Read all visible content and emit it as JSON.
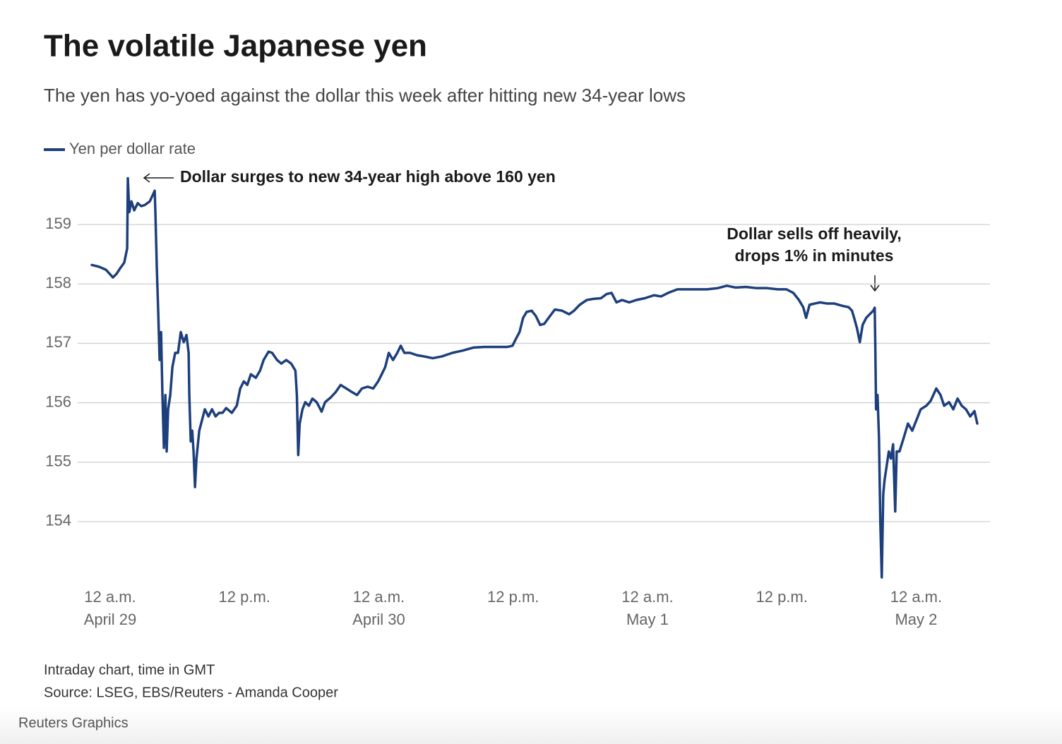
{
  "chart_data": {
    "type": "line",
    "title": "The volatile Japanese yen",
    "subtitle": "The yen has yo-yoed against the dollar this week after hitting new 34-year lows",
    "annotations": [
      {
        "lines": [
          "Dollar surges to new 34-year high above 160 yen"
        ]
      },
      {
        "lines": [
          "Dollar sells off heavily,",
          "drops 1% in minutes"
        ]
      }
    ],
    "notes": [
      "Intraday chart, time in GMT",
      "Source: LSEG, EBS/Reuters - Amanda Cooper"
    ],
    "credit": "Reuters Graphics",
    "grid": true,
    "legend": "top-left",
    "xlim": [
      -1.64,
      77.46
    ],
    "xticks": [
      {
        "value": 0,
        "label": [
          "12 a.m.",
          "April 29"
        ]
      },
      {
        "value": 12,
        "label": [
          "12 p.m."
        ]
      },
      {
        "value": 24,
        "label": [
          "12 a.m.",
          "April 30"
        ]
      },
      {
        "value": 36,
        "label": [
          "12 p.m."
        ]
      },
      {
        "value": 48,
        "label": [
          "12 a.m.",
          "May 1"
        ]
      },
      {
        "value": 60,
        "label": [
          "12 p.m."
        ]
      },
      {
        "value": 72,
        "label": [
          "12 a.m.",
          "May 2"
        ]
      }
    ],
    "ylim": [
      153,
      160
    ],
    "yticks": [
      154,
      155,
      156,
      157,
      158,
      159
    ],
    "x": [
      -1.64,
      -1.0,
      -0.38,
      0.25,
      0.57,
      0.88,
      1.26,
      1.52,
      1.58,
      1.71,
      1.9,
      2.15,
      2.46,
      2.78,
      3.1,
      3.54,
      3.98,
      4.04,
      4.17,
      4.29,
      4.42,
      4.55,
      4.67,
      4.8,
      4.93,
      5.05,
      5.18,
      5.37,
      5.56,
      5.81,
      6.06,
      6.31,
      6.57,
      6.82,
      7.01,
      7.07,
      7.2,
      7.33,
      7.45,
      7.58,
      7.71,
      7.96,
      8.21,
      8.46,
      8.78,
      9.1,
      9.42,
      9.73,
      10.04,
      10.36,
      10.87,
      11.31,
      11.62,
      11.94,
      12.25,
      12.57,
      13.01,
      13.39,
      13.71,
      14.15,
      14.47,
      14.91,
      15.29,
      15.73,
      16.17,
      16.55,
      16.68,
      16.8,
      16.93,
      17.18,
      17.43,
      17.75,
      18.07,
      18.45,
      18.89,
      19.2,
      19.71,
      20.15,
      20.59,
      21.1,
      21.6,
      22.05,
      22.49,
      23.0,
      23.5,
      23.94,
      24.26,
      24.57,
      24.89,
      25.27,
      25.65,
      25.96,
      26.28,
      26.79,
      27.42,
      28.05,
      28.81,
      29.63,
      30.57,
      31.52,
      32.47,
      33.42,
      34.36,
      35.5,
      35.94,
      36.26,
      36.57,
      36.89,
      37.21,
      37.65,
      38.03,
      38.41,
      38.79,
      39.17,
      39.73,
      40.37,
      41.0,
      41.44,
      41.95,
      42.58,
      43.21,
      43.84,
      44.35,
      44.79,
      45.23,
      45.73,
      46.37,
      47.0,
      47.76,
      48.58,
      49.21,
      49.85,
      50.67,
      51.43,
      52.37,
      53.32,
      54.27,
      55.09,
      55.85,
      56.8,
      57.74,
      58.69,
      59.64,
      60.4,
      61.03,
      61.53,
      61.91,
      62.17,
      62.48,
      62.93,
      63.42,
      64.06,
      64.69,
      65.45,
      65.96,
      66.27,
      66.46,
      66.72,
      66.97,
      67.22,
      67.54,
      67.85,
      68.17,
      68.3,
      68.36,
      68.42,
      68.55,
      68.68,
      68.8,
      68.93,
      69.06,
      69.18,
      69.37,
      69.56,
      69.75,
      69.94,
      70.13,
      70.26,
      70.51,
      70.89,
      71.27,
      71.65,
      72.03,
      72.41,
      72.91,
      73.29,
      73.8,
      74.18,
      74.5,
      74.94,
      75.32,
      75.7,
      76.07,
      76.45,
      76.83,
      77.21,
      77.46
    ],
    "series": [
      {
        "name": "Yen per dollar rate",
        "color": "#1d3f7c",
        "values": [
          158.32,
          158.29,
          158.24,
          158.11,
          158.17,
          158.26,
          158.36,
          158.6,
          159.78,
          159.21,
          159.39,
          159.24,
          159.36,
          159.31,
          159.33,
          159.39,
          159.57,
          159.21,
          158.26,
          157.55,
          156.72,
          157.19,
          156.13,
          155.24,
          156.13,
          155.18,
          155.89,
          156.13,
          156.6,
          156.84,
          156.84,
          157.19,
          157.02,
          157.14,
          156.84,
          156.13,
          155.35,
          155.53,
          155.18,
          154.58,
          155.06,
          155.53,
          155.71,
          155.89,
          155.77,
          155.89,
          155.77,
          155.83,
          155.83,
          155.91,
          155.83,
          155.95,
          156.24,
          156.36,
          156.3,
          156.48,
          156.42,
          156.54,
          156.72,
          156.86,
          156.84,
          156.72,
          156.66,
          156.72,
          156.66,
          156.54,
          156.13,
          155.12,
          155.65,
          155.89,
          156.01,
          155.95,
          156.07,
          156.01,
          155.85,
          156.01,
          156.09,
          156.18,
          156.3,
          156.24,
          156.18,
          156.13,
          156.24,
          156.27,
          156.24,
          156.36,
          156.48,
          156.6,
          156.84,
          156.72,
          156.84,
          156.96,
          156.84,
          156.84,
          156.8,
          156.78,
          156.75,
          156.78,
          156.84,
          156.88,
          156.93,
          156.94,
          156.94,
          156.94,
          156.96,
          157.08,
          157.19,
          157.43,
          157.53,
          157.55,
          157.46,
          157.31,
          157.33,
          157.43,
          157.57,
          157.55,
          157.49,
          157.55,
          157.65,
          157.73,
          157.75,
          157.76,
          157.83,
          157.85,
          157.69,
          157.73,
          157.69,
          157.73,
          157.76,
          157.81,
          157.79,
          157.85,
          157.91,
          157.91,
          157.91,
          157.91,
          157.93,
          157.97,
          157.94,
          157.95,
          157.93,
          157.93,
          157.91,
          157.91,
          157.85,
          157.73,
          157.61,
          157.43,
          157.65,
          157.67,
          157.69,
          157.67,
          157.67,
          157.63,
          157.61,
          157.55,
          157.43,
          157.25,
          157.02,
          157.31,
          157.43,
          157.49,
          157.55,
          157.6,
          156.84,
          155.89,
          156.13,
          155.41,
          153.99,
          153.06,
          154.46,
          154.7,
          154.94,
          155.18,
          155.06,
          155.3,
          154.17,
          155.18,
          155.18,
          155.41,
          155.65,
          155.53,
          155.71,
          155.89,
          155.95,
          156.03,
          156.24,
          156.13,
          155.95,
          156.01,
          155.89,
          156.07,
          155.95,
          155.89,
          155.77,
          155.86,
          155.65
        ]
      }
    ]
  }
}
